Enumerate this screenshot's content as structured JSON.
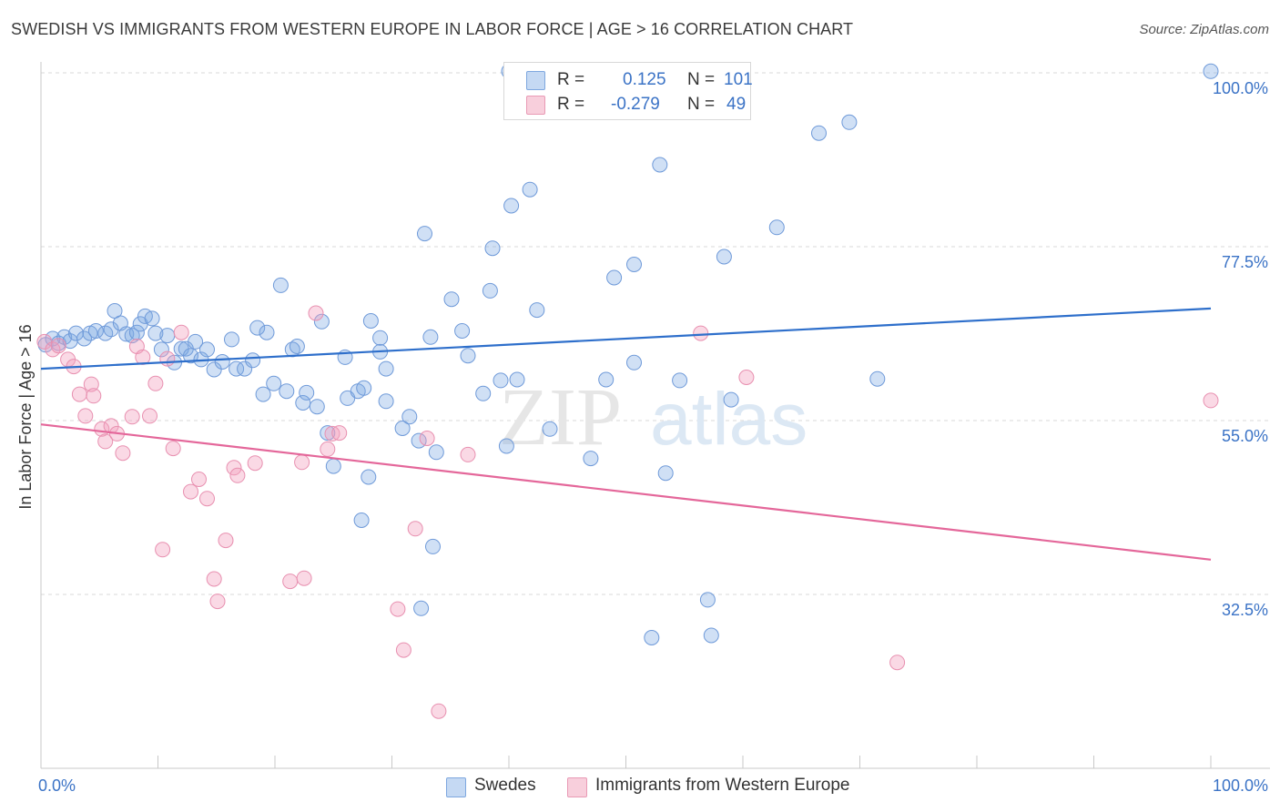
{
  "title": "SWEDISH VS IMMIGRANTS FROM WESTERN EUROPE IN LABOR FORCE | AGE > 16 CORRELATION CHART",
  "source": "Source: ZipAtlas.com",
  "watermark": {
    "zip": "ZIP",
    "atlas": "atlas"
  },
  "legend": {
    "r_label": "R =",
    "n_label": "N =",
    "rows": [
      {
        "name": "Swedes",
        "r": "0.125",
        "n": "101",
        "color": "#4a86d8"
      },
      {
        "name": "Immigrants from Western Europe",
        "r": "-0.279",
        "n": "49",
        "color": "#e8729b"
      }
    ]
  },
  "chart_data": {
    "type": "scatter",
    "title": "SWEDISH VS IMMIGRANTS FROM WESTERN EUROPE IN LABOR FORCE | AGE > 16 CORRELATION CHART",
    "xlabel": "",
    "ylabel": "In Labor Force | Age > 16",
    "xlim": [
      0,
      100
    ],
    "ylim": [
      10,
      100
    ],
    "x_tick_labels": [
      "0.0%",
      "100.0%"
    ],
    "y_ticks": [
      32.5,
      55.0,
      77.5,
      100.0
    ],
    "y_tick_labels": [
      "32.5%",
      "55.0%",
      "77.5%",
      "100.0%"
    ],
    "series": [
      {
        "name": "Swedes",
        "color": "#4a86d8",
        "trend": {
          "x": [
            0,
            100
          ],
          "y": [
            61.7,
            69.5
          ]
        },
        "points": [
          [
            0.4,
            64.8
          ],
          [
            1,
            65.6
          ],
          [
            1.5,
            65
          ],
          [
            2,
            65.8
          ],
          [
            2.5,
            65.3
          ],
          [
            3,
            66.3
          ],
          [
            3.7,
            65.6
          ],
          [
            4.2,
            66.3
          ],
          [
            4.7,
            66.6
          ],
          [
            5.5,
            66.3
          ],
          [
            6,
            66.8
          ],
          [
            6.3,
            69.2
          ],
          [
            6.8,
            67.6
          ],
          [
            7.3,
            66.2
          ],
          [
            7.8,
            66
          ],
          [
            8.2,
            66.4
          ],
          [
            8.5,
            67.5
          ],
          [
            8.9,
            68.5
          ],
          [
            9.5,
            68.2
          ],
          [
            9.8,
            66.3
          ],
          [
            10.3,
            64.2
          ],
          [
            10.8,
            66
          ],
          [
            11.4,
            62.5
          ],
          [
            12,
            64.3
          ],
          [
            12.4,
            64.3
          ],
          [
            12.8,
            63.4
          ],
          [
            13.2,
            65.2
          ],
          [
            13.7,
            62.9
          ],
          [
            14.2,
            64.2
          ],
          [
            14.8,
            61.6
          ],
          [
            15.5,
            62.6
          ],
          [
            16.3,
            65.5
          ],
          [
            16.7,
            61.7
          ],
          [
            17.4,
            61.7
          ],
          [
            18.1,
            62.8
          ],
          [
            18.5,
            67
          ],
          [
            19,
            58.4
          ],
          [
            19.3,
            66.4
          ],
          [
            19.9,
            59.8
          ],
          [
            20.5,
            72.5
          ],
          [
            21,
            58.8
          ],
          [
            21.5,
            64.2
          ],
          [
            21.9,
            64.6
          ],
          [
            22.4,
            57.3
          ],
          [
            22.7,
            58.6
          ],
          [
            23.6,
            56.8
          ],
          [
            24,
            67.8
          ],
          [
            24.5,
            53.4
          ],
          [
            25,
            49.1
          ],
          [
            26,
            63.2
          ],
          [
            26.2,
            57.9
          ],
          [
            27.1,
            58.8
          ],
          [
            27.6,
            59.2
          ],
          [
            28.2,
            67.9
          ],
          [
            29,
            65.7
          ],
          [
            29,
            63.9
          ],
          [
            29.5,
            61.7
          ],
          [
            30.9,
            54
          ],
          [
            31.5,
            55.5
          ],
          [
            32.3,
            52.4
          ],
          [
            32.8,
            79.2
          ],
          [
            33.3,
            65.8
          ],
          [
            33.8,
            50.9
          ],
          [
            35.1,
            70.7
          ],
          [
            36,
            66.6
          ],
          [
            36.5,
            63.4
          ],
          [
            37.8,
            58.5
          ],
          [
            38.4,
            71.8
          ],
          [
            38.6,
            77.3
          ],
          [
            39.3,
            60.2
          ],
          [
            39.8,
            51.7
          ],
          [
            40.2,
            82.8
          ],
          [
            40.7,
            60.3
          ],
          [
            41.8,
            84.9
          ],
          [
            42.4,
            69.3
          ],
          [
            43.5,
            53.9
          ],
          [
            47,
            50.1
          ],
          [
            48.3,
            60.3
          ],
          [
            49,
            73.5
          ],
          [
            50.7,
            75.2
          ],
          [
            50.7,
            62.5
          ],
          [
            52.2,
            26.9
          ],
          [
            52.9,
            88.1
          ],
          [
            53.4,
            48.2
          ],
          [
            54.6,
            60.2
          ],
          [
            57,
            31.8
          ],
          [
            57.3,
            27.2
          ],
          [
            58.4,
            76.2
          ],
          [
            59,
            57.7
          ],
          [
            62.9,
            80
          ],
          [
            66.5,
            92.2
          ],
          [
            69.1,
            93.6
          ],
          [
            71.5,
            60.4
          ],
          [
            100,
            100.2
          ],
          [
            40,
            100.2
          ],
          [
            32.5,
            30.7
          ],
          [
            28,
            47.7
          ],
          [
            27.4,
            42.1
          ],
          [
            33.5,
            38.7
          ],
          [
            29.5,
            57.5
          ]
        ]
      },
      {
        "name": "Immigrants from Western Europe",
        "color": "#e8729b",
        "trend": {
          "x": [
            0,
            100
          ],
          "y": [
            54.5,
            37
          ]
        },
        "points": [
          [
            0.3,
            65.2
          ],
          [
            1,
            64.2
          ],
          [
            1.5,
            64.7
          ],
          [
            2.3,
            62.9
          ],
          [
            2.8,
            62
          ],
          [
            3.3,
            58.4
          ],
          [
            3.8,
            55.6
          ],
          [
            4.3,
            59.7
          ],
          [
            4.5,
            58.2
          ],
          [
            5.2,
            53.9
          ],
          [
            5.5,
            52.3
          ],
          [
            6,
            54.3
          ],
          [
            6.5,
            53.3
          ],
          [
            7,
            50.8
          ],
          [
            7.8,
            55.5
          ],
          [
            8.2,
            64.6
          ],
          [
            8.7,
            63.2
          ],
          [
            9.3,
            55.6
          ],
          [
            9.8,
            59.8
          ],
          [
            10.4,
            38.3
          ],
          [
            10.8,
            63
          ],
          [
            11.3,
            51.4
          ],
          [
            12,
            66.4
          ],
          [
            12.8,
            45.8
          ],
          [
            13.5,
            47.4
          ],
          [
            14.2,
            44.9
          ],
          [
            14.8,
            34.5
          ],
          [
            15.1,
            31.6
          ],
          [
            15.8,
            39.5
          ],
          [
            16.5,
            48.9
          ],
          [
            16.8,
            47.9
          ],
          [
            18.3,
            49.5
          ],
          [
            21.3,
            34.2
          ],
          [
            22.3,
            49.6
          ],
          [
            22.5,
            34.6
          ],
          [
            23.5,
            68.9
          ],
          [
            24.5,
            51.3
          ],
          [
            24.9,
            53.3
          ],
          [
            30.5,
            30.6
          ],
          [
            31,
            25.3
          ],
          [
            32,
            41
          ],
          [
            33,
            52.7
          ],
          [
            34,
            17.4
          ],
          [
            36.5,
            50.6
          ],
          [
            56.4,
            66.3
          ],
          [
            60.3,
            60.6
          ],
          [
            73.2,
            23.7
          ],
          [
            100,
            57.6
          ],
          [
            25.5,
            53.4
          ]
        ]
      }
    ]
  }
}
